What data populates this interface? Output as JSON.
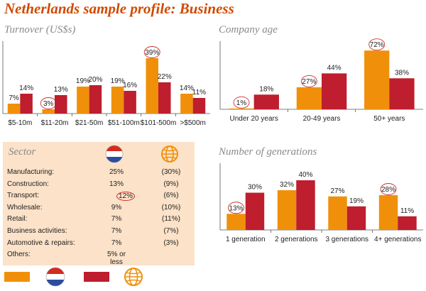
{
  "title": "Netherlands sample profile: Business",
  "colors": {
    "nl": "#f0900a",
    "global": "#be1e2d",
    "circle": "#d0302c"
  },
  "legend": {
    "nl_flag": "netherlands-flag-icon",
    "global_icon": "globe-icon"
  },
  "chart_data": [
    {
      "type": "bar",
      "title": "Turnover (US$s)",
      "categories": [
        "$5-10m",
        "$11-20m",
        "$21-50m",
        "$51-100m",
        "$101-500m",
        ">$500m"
      ],
      "series": [
        {
          "values": [
            7,
            3,
            19,
            19,
            39,
            14
          ],
          "labels": [
            "7%",
            "3%",
            "19%",
            "19%",
            "39%",
            "14%"
          ]
        },
        {
          "values": [
            14,
            13,
            20,
            16,
            22,
            11
          ],
          "labels": [
            "14%",
            "13%",
            "20%",
            "16%",
            "22%",
            "11%"
          ]
        }
      ],
      "circled": [
        1,
        4
      ]
    },
    {
      "type": "bar",
      "title": "Company age",
      "categories": [
        "Under 20 years",
        "20-49 years",
        "50+ years"
      ],
      "series": [
        {
          "values": [
            1,
            27,
            72
          ],
          "labels": [
            "1%",
            "27%",
            "72%"
          ]
        },
        {
          "values": [
            18,
            44,
            38
          ],
          "labels": [
            "18%",
            "44%",
            "38%"
          ]
        }
      ],
      "circled": [
        0,
        1,
        2
      ]
    },
    {
      "type": "bar",
      "title": "Number of generations",
      "categories": [
        "1 generation",
        "2 generations",
        "3 generations",
        "4+ generations"
      ],
      "series": [
        {
          "values": [
            13,
            32,
            27,
            28
          ],
          "labels": [
            "13%",
            "32%",
            "27%",
            "28%"
          ]
        },
        {
          "values": [
            30,
            40,
            19,
            11
          ],
          "labels": [
            "30%",
            "40%",
            "19%",
            "11%"
          ]
        }
      ],
      "circled": [
        0,
        3
      ]
    },
    {
      "type": "table",
      "title": "Sector",
      "rows": [
        {
          "name": "Manufacturing:",
          "nl": "25%",
          "global": "(30%)"
        },
        {
          "name": "Construction:",
          "nl": "13%",
          "global": "(9%)"
        },
        {
          "name": "Transport:",
          "nl": "12%",
          "global": "(6%)",
          "circled": true
        },
        {
          "name": "Wholesale:",
          "nl": "9%",
          "global": "(10%)"
        },
        {
          "name": "Retail:",
          "nl": "7%",
          "global": "(11%)"
        },
        {
          "name": "Business activities:",
          "nl": "7%",
          "global": "(7%)"
        },
        {
          "name": "Automotive & repairs:",
          "nl": "7%",
          "global": "(3%)"
        },
        {
          "name": "Others:",
          "nl": "5% or less",
          "global": ""
        }
      ]
    }
  ]
}
